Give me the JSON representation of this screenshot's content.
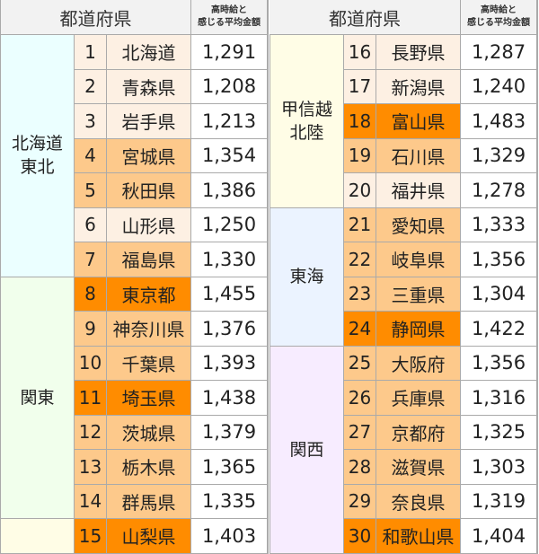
{
  "header": {
    "prefecture": "都道府県",
    "wage_line1": "高時給と",
    "wage_line2": "感じる平均金額"
  },
  "level_colors": {
    "light": "#fdf0e3",
    "medium": "#fdc98b",
    "dark": "#ff8c00"
  },
  "halves": [
    {
      "regions": [
        {
          "lines": [
            "北海道",
            "東北"
          ],
          "rows": 7,
          "color": "#ebffff"
        },
        {
          "lines": [
            "関東"
          ],
          "rows": 7,
          "color": "#f1ffec"
        },
        {
          "lines": [],
          "rows": 1,
          "color": "#fffde6"
        }
      ],
      "rows": [
        {
          "no": "1",
          "pref": "北海道",
          "value": "1,291",
          "level": "light"
        },
        {
          "no": "2",
          "pref": "青森県",
          "value": "1,208",
          "level": "light"
        },
        {
          "no": "3",
          "pref": "岩手県",
          "value": "1,213",
          "level": "light"
        },
        {
          "no": "4",
          "pref": "宮城県",
          "value": "1,354",
          "level": "medium"
        },
        {
          "no": "5",
          "pref": "秋田県",
          "value": "1,386",
          "level": "medium"
        },
        {
          "no": "6",
          "pref": "山形県",
          "value": "1,250",
          "level": "light"
        },
        {
          "no": "7",
          "pref": "福島県",
          "value": "1,330",
          "level": "medium"
        },
        {
          "no": "8",
          "pref": "東京都",
          "value": "1,455",
          "level": "dark"
        },
        {
          "no": "9",
          "pref": "神奈川県",
          "value": "1,376",
          "level": "medium"
        },
        {
          "no": "10",
          "pref": "千葉県",
          "value": "1,393",
          "level": "medium"
        },
        {
          "no": "11",
          "pref": "埼玉県",
          "value": "1,438",
          "level": "dark"
        },
        {
          "no": "12",
          "pref": "茨城県",
          "value": "1,379",
          "level": "medium"
        },
        {
          "no": "13",
          "pref": "栃木県",
          "value": "1,365",
          "level": "medium"
        },
        {
          "no": "14",
          "pref": "群馬県",
          "value": "1,335",
          "level": "medium"
        },
        {
          "no": "15",
          "pref": "山梨県",
          "value": "1,403",
          "level": "dark"
        }
      ]
    },
    {
      "regions": [
        {
          "lines": [
            "甲信越",
            "北陸"
          ],
          "rows": 5,
          "color": "#fffde6"
        },
        {
          "lines": [
            "東海"
          ],
          "rows": 4,
          "color": "#ebf3ff"
        },
        {
          "lines": [
            "関西"
          ],
          "rows": 6,
          "color": "#f7ecff"
        }
      ],
      "rows": [
        {
          "no": "16",
          "pref": "長野県",
          "value": "1,287",
          "level": "light"
        },
        {
          "no": "17",
          "pref": "新潟県",
          "value": "1,240",
          "level": "light"
        },
        {
          "no": "18",
          "pref": "富山県",
          "value": "1,483",
          "level": "dark"
        },
        {
          "no": "19",
          "pref": "石川県",
          "value": "1,329",
          "level": "medium"
        },
        {
          "no": "20",
          "pref": "福井県",
          "value": "1,278",
          "level": "light"
        },
        {
          "no": "21",
          "pref": "愛知県",
          "value": "1,333",
          "level": "medium"
        },
        {
          "no": "22",
          "pref": "岐阜県",
          "value": "1,356",
          "level": "medium"
        },
        {
          "no": "23",
          "pref": "三重県",
          "value": "1,304",
          "level": "medium"
        },
        {
          "no": "24",
          "pref": "静岡県",
          "value": "1,422",
          "level": "dark"
        },
        {
          "no": "25",
          "pref": "大阪府",
          "value": "1,356",
          "level": "medium"
        },
        {
          "no": "26",
          "pref": "兵庫県",
          "value": "1,316",
          "level": "medium"
        },
        {
          "no": "27",
          "pref": "京都府",
          "value": "1,325",
          "level": "medium"
        },
        {
          "no": "28",
          "pref": "滋賀県",
          "value": "1,303",
          "level": "medium"
        },
        {
          "no": "29",
          "pref": "奈良県",
          "value": "1,319",
          "level": "medium"
        },
        {
          "no": "30",
          "pref": "和歌山県",
          "value": "1,404",
          "level": "dark"
        }
      ]
    }
  ]
}
